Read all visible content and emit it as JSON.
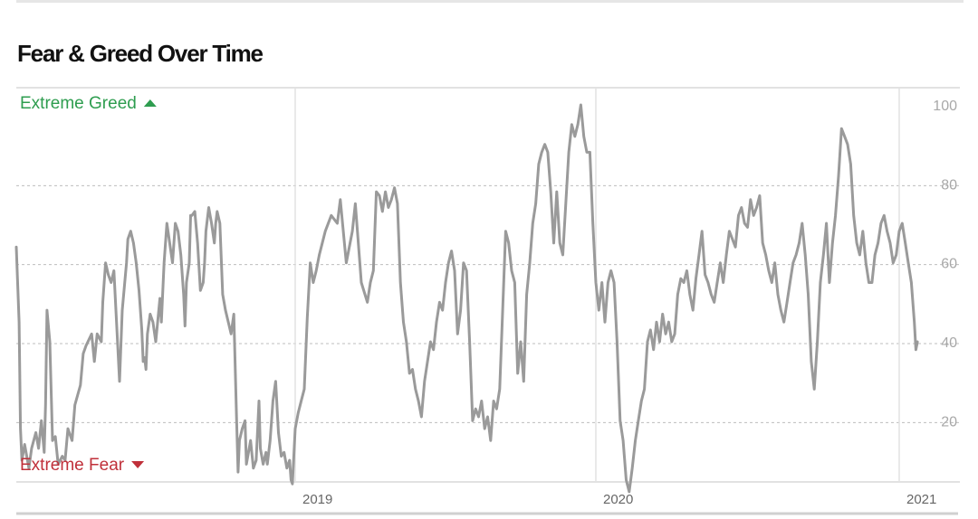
{
  "header": {
    "title": "Fear & Greed Over Time"
  },
  "chart_data": {
    "type": "line",
    "title": "Fear & Greed Over Time",
    "xlabel": "",
    "ylabel": "",
    "ylim": [
      0,
      100
    ],
    "xlim": [
      2018.0,
      2021.12
    ],
    "y_ticks": [
      "20",
      "40",
      "60",
      "80",
      "100"
    ],
    "x_ticks": [
      {
        "label": "2019",
        "x": 2019.0
      },
      {
        "label": "2020",
        "x": 2020.0
      },
      {
        "label": "2021",
        "x": 2021.0
      }
    ],
    "zones": {
      "top": {
        "label": "Extreme Greed",
        "color": "#2e9d4f"
      },
      "bottom": {
        "label": "Extreme Fear",
        "color": "#c0303a"
      }
    },
    "grid": true,
    "line_color": "#9a9a9a",
    "series": [
      {
        "values": [
          [
            2018.0,
            64
          ],
          [
            2018.01,
            45
          ],
          [
            2018.015,
            18
          ],
          [
            2018.02,
            10
          ],
          [
            2018.03,
            14
          ],
          [
            2018.045,
            8
          ],
          [
            2018.055,
            13
          ],
          [
            2018.07,
            17
          ],
          [
            2018.08,
            13
          ],
          [
            2018.09,
            20
          ],
          [
            2018.1,
            12
          ],
          [
            2018.105,
            24
          ],
          [
            2018.11,
            48
          ],
          [
            2018.12,
            40
          ],
          [
            2018.13,
            15
          ],
          [
            2018.14,
            16
          ],
          [
            2018.15,
            9
          ],
          [
            2018.165,
            11
          ],
          [
            2018.175,
            10
          ],
          [
            2018.185,
            18
          ],
          [
            2018.2,
            15
          ],
          [
            2018.21,
            24
          ],
          [
            2018.23,
            29
          ],
          [
            2018.24,
            37
          ],
          [
            2018.25,
            39
          ],
          [
            2018.27,
            42
          ],
          [
            2018.28,
            35
          ],
          [
            2018.29,
            42
          ],
          [
            2018.305,
            40
          ],
          [
            2018.31,
            50
          ],
          [
            2018.32,
            60
          ],
          [
            2018.33,
            57
          ],
          [
            2018.34,
            55
          ],
          [
            2018.35,
            58
          ],
          [
            2018.36,
            44
          ],
          [
            2018.37,
            30
          ],
          [
            2018.38,
            48
          ],
          [
            2018.395,
            60
          ],
          [
            2018.4,
            66
          ],
          [
            2018.41,
            68
          ],
          [
            2018.42,
            65
          ],
          [
            2018.43,
            60
          ],
          [
            2018.44,
            53
          ],
          [
            2018.45,
            43
          ],
          [
            2018.455,
            35
          ],
          [
            2018.46,
            36
          ],
          [
            2018.465,
            33
          ],
          [
            2018.47,
            42
          ],
          [
            2018.48,
            47
          ],
          [
            2018.49,
            45
          ],
          [
            2018.5,
            40
          ],
          [
            2018.515,
            51
          ],
          [
            2018.52,
            45
          ],
          [
            2018.53,
            60
          ],
          [
            2018.54,
            70
          ],
          [
            2018.55,
            65
          ],
          [
            2018.56,
            60
          ],
          [
            2018.57,
            70
          ],
          [
            2018.58,
            68
          ],
          [
            2018.59,
            62
          ],
          [
            2018.6,
            52
          ],
          [
            2018.605,
            44
          ],
          [
            2018.61,
            55
          ],
          [
            2018.62,
            60
          ],
          [
            2018.625,
            72
          ],
          [
            2018.63,
            72
          ],
          [
            2018.64,
            73
          ],
          [
            2018.65,
            65
          ],
          [
            2018.66,
            53
          ],
          [
            2018.67,
            55
          ],
          [
            2018.675,
            60
          ],
          [
            2018.68,
            68
          ],
          [
            2018.69,
            74
          ],
          [
            2018.7,
            70
          ],
          [
            2018.71,
            65
          ],
          [
            2018.715,
            70
          ],
          [
            2018.72,
            73
          ],
          [
            2018.73,
            70
          ],
          [
            2018.74,
            52
          ],
          [
            2018.75,
            48
          ],
          [
            2018.76,
            45
          ],
          [
            2018.77,
            42
          ],
          [
            2018.78,
            47
          ],
          [
            2018.79,
            20
          ],
          [
            2018.795,
            7
          ],
          [
            2018.8,
            15
          ],
          [
            2018.81,
            18
          ],
          [
            2018.82,
            20
          ],
          [
            2018.825,
            9
          ],
          [
            2018.84,
            15
          ],
          [
            2018.85,
            8
          ],
          [
            2018.86,
            10
          ],
          [
            2018.87,
            25
          ],
          [
            2018.875,
            13
          ],
          [
            2018.885,
            9
          ],
          [
            2018.895,
            12
          ],
          [
            2018.9,
            9
          ],
          [
            2018.91,
            15
          ],
          [
            2018.92,
            25
          ],
          [
            2018.93,
            30
          ],
          [
            2018.94,
            17
          ],
          [
            2018.95,
            11
          ],
          [
            2018.96,
            12
          ],
          [
            2018.97,
            8
          ],
          [
            2018.98,
            10
          ],
          [
            2018.985,
            5
          ],
          [
            2018.99,
            4
          ],
          [
            2019.0,
            18
          ],
          [
            2019.01,
            22
          ],
          [
            2019.02,
            25
          ],
          [
            2019.03,
            28
          ],
          [
            2019.04,
            46
          ],
          [
            2019.05,
            60
          ],
          [
            2019.06,
            55
          ],
          [
            2019.07,
            58
          ],
          [
            2019.08,
            62
          ],
          [
            2019.1,
            68
          ],
          [
            2019.12,
            72
          ],
          [
            2019.14,
            70
          ],
          [
            2019.15,
            76
          ],
          [
            2019.17,
            60
          ],
          [
            2019.19,
            68
          ],
          [
            2019.2,
            75
          ],
          [
            2019.22,
            55
          ],
          [
            2019.24,
            50
          ],
          [
            2019.25,
            55
          ],
          [
            2019.26,
            58
          ],
          [
            2019.27,
            78
          ],
          [
            2019.28,
            77
          ],
          [
            2019.29,
            73
          ],
          [
            2019.3,
            78
          ],
          [
            2019.31,
            74
          ],
          [
            2019.32,
            76
          ],
          [
            2019.33,
            79
          ],
          [
            2019.34,
            75
          ],
          [
            2019.35,
            55
          ],
          [
            2019.36,
            45
          ],
          [
            2019.37,
            40
          ],
          [
            2019.38,
            32
          ],
          [
            2019.39,
            33
          ],
          [
            2019.4,
            28
          ],
          [
            2019.41,
            25
          ],
          [
            2019.42,
            21
          ],
          [
            2019.43,
            30
          ],
          [
            2019.44,
            35
          ],
          [
            2019.45,
            40
          ],
          [
            2019.46,
            38
          ],
          [
            2019.47,
            45
          ],
          [
            2019.48,
            50
          ],
          [
            2019.49,
            48
          ],
          [
            2019.5,
            55
          ],
          [
            2019.51,
            60
          ],
          [
            2019.52,
            63
          ],
          [
            2019.53,
            58
          ],
          [
            2019.54,
            42
          ],
          [
            2019.55,
            48
          ],
          [
            2019.56,
            60
          ],
          [
            2019.57,
            58
          ],
          [
            2019.58,
            40
          ],
          [
            2019.59,
            20
          ],
          [
            2019.6,
            23
          ],
          [
            2019.61,
            21
          ],
          [
            2019.62,
            25
          ],
          [
            2019.63,
            18
          ],
          [
            2019.64,
            21
          ],
          [
            2019.65,
            15
          ],
          [
            2019.66,
            25
          ],
          [
            2019.67,
            23
          ],
          [
            2019.68,
            28
          ],
          [
            2019.69,
            48
          ],
          [
            2019.7,
            68
          ],
          [
            2019.71,
            65
          ],
          [
            2019.72,
            58
          ],
          [
            2019.73,
            55
          ],
          [
            2019.74,
            32
          ],
          [
            2019.75,
            40
          ],
          [
            2019.76,
            30
          ],
          [
            2019.77,
            52
          ],
          [
            2019.78,
            60
          ],
          [
            2019.79,
            70
          ],
          [
            2019.8,
            75
          ],
          [
            2019.81,
            85
          ],
          [
            2019.82,
            88
          ],
          [
            2019.83,
            90
          ],
          [
            2019.84,
            88
          ],
          [
            2019.85,
            78
          ],
          [
            2019.86,
            65
          ],
          [
            2019.87,
            78
          ],
          [
            2019.88,
            65
          ],
          [
            2019.89,
            62
          ],
          [
            2019.9,
            75
          ],
          [
            2019.91,
            88
          ],
          [
            2019.92,
            95
          ],
          [
            2019.93,
            92
          ],
          [
            2019.94,
            95
          ],
          [
            2019.95,
            100
          ],
          [
            2019.96,
            92
          ],
          [
            2019.97,
            88
          ],
          [
            2019.98,
            88
          ],
          [
            2019.99,
            70
          ],
          [
            2020.0,
            55
          ],
          [
            2020.01,
            48
          ],
          [
            2020.02,
            55
          ],
          [
            2020.03,
            45
          ],
          [
            2020.04,
            55
          ],
          [
            2020.05,
            58
          ],
          [
            2020.06,
            55
          ],
          [
            2020.07,
            40
          ],
          [
            2020.08,
            20
          ],
          [
            2020.09,
            15
          ],
          [
            2020.1,
            5
          ],
          [
            2020.11,
            2
          ],
          [
            2020.12,
            8
          ],
          [
            2020.13,
            15
          ],
          [
            2020.14,
            20
          ],
          [
            2020.15,
            25
          ],
          [
            2020.16,
            28
          ],
          [
            2020.17,
            40
          ],
          [
            2020.18,
            43
          ],
          [
            2020.19,
            38
          ],
          [
            2020.2,
            45
          ],
          [
            2020.21,
            40
          ],
          [
            2020.22,
            47
          ],
          [
            2020.23,
            42
          ],
          [
            2020.24,
            45
          ],
          [
            2020.25,
            40
          ],
          [
            2020.26,
            42
          ],
          [
            2020.27,
            52
          ],
          [
            2020.28,
            56
          ],
          [
            2020.29,
            55
          ],
          [
            2020.3,
            58
          ],
          [
            2020.31,
            52
          ],
          [
            2020.32,
            48
          ],
          [
            2020.33,
            56
          ],
          [
            2020.34,
            62
          ],
          [
            2020.35,
            68
          ],
          [
            2020.36,
            57
          ],
          [
            2020.37,
            55
          ],
          [
            2020.38,
            52
          ],
          [
            2020.39,
            50
          ],
          [
            2020.4,
            55
          ],
          [
            2020.41,
            60
          ],
          [
            2020.42,
            55
          ],
          [
            2020.43,
            62
          ],
          [
            2020.44,
            68
          ],
          [
            2020.45,
            66
          ],
          [
            2020.46,
            64
          ],
          [
            2020.47,
            72
          ],
          [
            2020.48,
            74
          ],
          [
            2020.49,
            70
          ],
          [
            2020.5,
            69
          ],
          [
            2020.51,
            76
          ],
          [
            2020.52,
            72
          ],
          [
            2020.53,
            74
          ],
          [
            2020.54,
            77
          ],
          [
            2020.55,
            65
          ],
          [
            2020.56,
            62
          ],
          [
            2020.57,
            58
          ],
          [
            2020.58,
            55
          ],
          [
            2020.59,
            60
          ],
          [
            2020.6,
            52
          ],
          [
            2020.61,
            48
          ],
          [
            2020.62,
            45
          ],
          [
            2020.63,
            50
          ],
          [
            2020.64,
            55
          ],
          [
            2020.65,
            60
          ],
          [
            2020.66,
            62
          ],
          [
            2020.67,
            65
          ],
          [
            2020.68,
            70
          ],
          [
            2020.69,
            62
          ],
          [
            2020.7,
            52
          ],
          [
            2020.71,
            35
          ],
          [
            2020.72,
            28
          ],
          [
            2020.73,
            40
          ],
          [
            2020.74,
            55
          ],
          [
            2020.75,
            62
          ],
          [
            2020.76,
            70
          ],
          [
            2020.77,
            55
          ],
          [
            2020.78,
            65
          ],
          [
            2020.79,
            72
          ],
          [
            2020.8,
            82
          ],
          [
            2020.81,
            94
          ],
          [
            2020.82,
            92
          ],
          [
            2020.83,
            90
          ],
          [
            2020.84,
            85
          ],
          [
            2020.85,
            72
          ],
          [
            2020.86,
            65
          ],
          [
            2020.87,
            62
          ],
          [
            2020.88,
            68
          ],
          [
            2020.89,
            60
          ],
          [
            2020.9,
            55
          ],
          [
            2020.91,
            55
          ],
          [
            2020.92,
            62
          ],
          [
            2020.93,
            65
          ],
          [
            2020.94,
            70
          ],
          [
            2020.95,
            72
          ],
          [
            2020.96,
            68
          ],
          [
            2020.97,
            65
          ],
          [
            2020.98,
            60
          ],
          [
            2020.99,
            62
          ],
          [
            2021.0,
            68
          ],
          [
            2021.01,
            70
          ],
          [
            2021.02,
            65
          ],
          [
            2021.03,
            60
          ],
          [
            2021.04,
            55
          ],
          [
            2021.05,
            45
          ],
          [
            2021.055,
            38
          ],
          [
            2021.06,
            40
          ]
        ]
      }
    ]
  }
}
